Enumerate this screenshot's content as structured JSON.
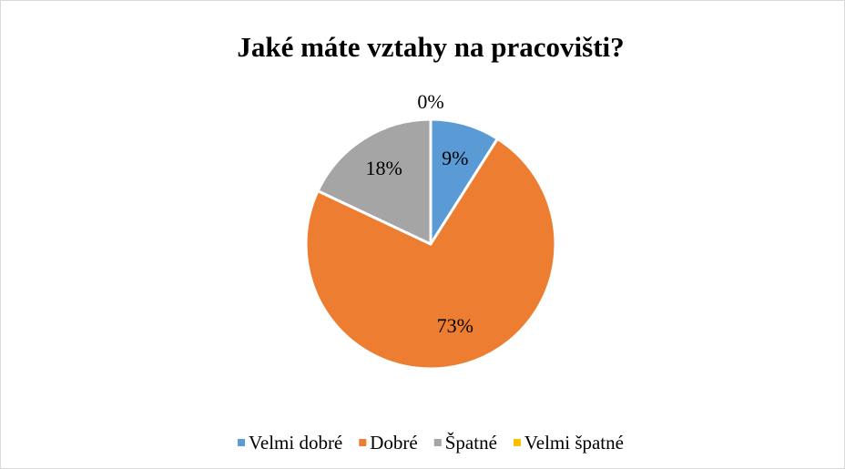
{
  "chart_data": {
    "type": "pie",
    "title": "Jaké máte vztahy na pracovišti?",
    "categories": [
      "Velmi dobré",
      "Dobré",
      "Špatné",
      "Velmi špatné"
    ],
    "values": [
      9,
      73,
      18,
      0
    ],
    "value_labels": [
      "9%",
      "73%",
      "18%",
      "0%"
    ],
    "colors": [
      "#5b9bd5",
      "#ed7d31",
      "#a5a5a5",
      "#ffc000"
    ],
    "legend": "bottom"
  }
}
